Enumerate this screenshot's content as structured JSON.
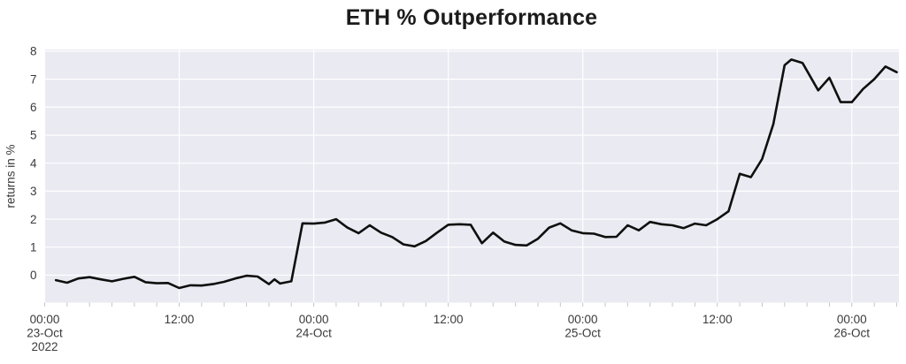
{
  "chart_data": {
    "type": "line",
    "title": "ETH % Outperformance",
    "ylabel": "returns in %",
    "xlabel": "",
    "x_axis": "time, hourly from 23-Oct-2022 00:00 to 26-Oct-2022 ~04:00",
    "xlim_hours": [
      0,
      76.2
    ],
    "ylim": [
      -0.98,
      8.06
    ],
    "grid": true,
    "legend_visible": false,
    "yticks": [
      0,
      1,
      2,
      3,
      4,
      5,
      6,
      7,
      8
    ],
    "xticks": [
      {
        "hour": 0,
        "lines": [
          "00:00",
          "23-Oct",
          "2022"
        ]
      },
      {
        "hour": 12,
        "lines": [
          "12:00"
        ]
      },
      {
        "hour": 24,
        "lines": [
          "00:00",
          "24-Oct"
        ]
      },
      {
        "hour": 36,
        "lines": [
          "12:00"
        ]
      },
      {
        "hour": 48,
        "lines": [
          "00:00",
          "25-Oct"
        ]
      },
      {
        "hour": 60,
        "lines": [
          "12:00"
        ]
      },
      {
        "hour": 72,
        "lines": [
          "00:00",
          "26-Oct"
        ]
      }
    ],
    "minor_xtick_step_hours": 2,
    "colors": {
      "plot_bg": "#eaeaf2",
      "grid": "#ffffff",
      "line": "#0f0f0f",
      "tick_text": "#3a3a3a",
      "title_text": "#1b1b1b",
      "minor_tick": "#c4c4ce"
    },
    "series": [
      {
        "name": "ETH % outperformance (returns in %)",
        "points": [
          [
            1,
            -0.18
          ],
          [
            2,
            -0.27
          ],
          [
            3,
            -0.12
          ],
          [
            4,
            -0.07
          ],
          [
            5,
            -0.15
          ],
          [
            6,
            -0.22
          ],
          [
            7,
            -0.13
          ],
          [
            8,
            -0.06
          ],
          [
            9,
            -0.25
          ],
          [
            10,
            -0.29
          ],
          [
            11,
            -0.28
          ],
          [
            12,
            -0.46
          ],
          [
            13,
            -0.36
          ],
          [
            14,
            -0.37
          ],
          [
            15,
            -0.32
          ],
          [
            16,
            -0.24
          ],
          [
            17,
            -0.12
          ],
          [
            18,
            -0.02
          ],
          [
            19,
            -0.05
          ],
          [
            20,
            -0.32
          ],
          [
            20.5,
            -0.15
          ],
          [
            21,
            -0.3
          ],
          [
            22,
            -0.22
          ],
          [
            23,
            1.85
          ],
          [
            24,
            1.84
          ],
          [
            25,
            1.88
          ],
          [
            26,
            2.0
          ],
          [
            27,
            1.7
          ],
          [
            28,
            1.5
          ],
          [
            29,
            1.78
          ],
          [
            30,
            1.52
          ],
          [
            31,
            1.36
          ],
          [
            32,
            1.1
          ],
          [
            33,
            1.03
          ],
          [
            34,
            1.22
          ],
          [
            35,
            1.52
          ],
          [
            36,
            1.8
          ],
          [
            37,
            1.82
          ],
          [
            38,
            1.8
          ],
          [
            39,
            1.14
          ],
          [
            40,
            1.52
          ],
          [
            41,
            1.2
          ],
          [
            42,
            1.08
          ],
          [
            43,
            1.06
          ],
          [
            44,
            1.3
          ],
          [
            45,
            1.7
          ],
          [
            46,
            1.85
          ],
          [
            47,
            1.6
          ],
          [
            48,
            1.5
          ],
          [
            49,
            1.48
          ],
          [
            50,
            1.36
          ],
          [
            51,
            1.37
          ],
          [
            52,
            1.78
          ],
          [
            53,
            1.6
          ],
          [
            54,
            1.9
          ],
          [
            55,
            1.82
          ],
          [
            56,
            1.78
          ],
          [
            57,
            1.68
          ],
          [
            58,
            1.84
          ],
          [
            59,
            1.78
          ],
          [
            60,
            2.0
          ],
          [
            61,
            2.28
          ],
          [
            62,
            3.62
          ],
          [
            63,
            3.5
          ],
          [
            64,
            4.15
          ],
          [
            65,
            5.4
          ],
          [
            66,
            7.5
          ],
          [
            66.6,
            7.7
          ],
          [
            67.6,
            7.58
          ],
          [
            69,
            6.6
          ],
          [
            70,
            7.05
          ],
          [
            71,
            6.18
          ],
          [
            72,
            6.18
          ],
          [
            73,
            6.65
          ],
          [
            74,
            7.0
          ],
          [
            75,
            7.45
          ],
          [
            76,
            7.25
          ]
        ]
      }
    ]
  }
}
